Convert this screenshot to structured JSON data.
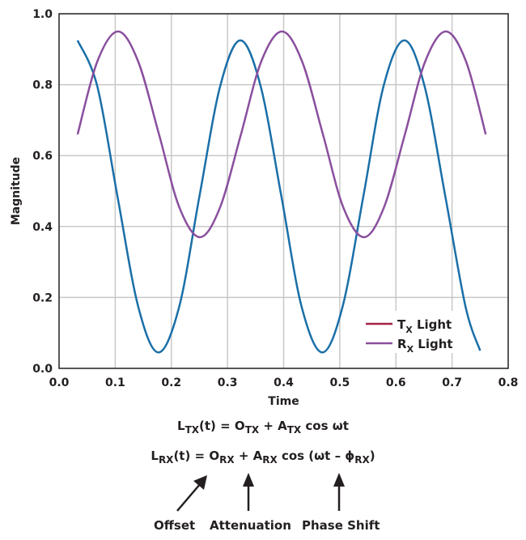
{
  "chart_data": {
    "type": "line",
    "xlabel": "Time",
    "ylabel": "Magnitude",
    "xlim": [
      0,
      0.8
    ],
    "ylim": [
      0,
      1.0
    ],
    "xticks": [
      "0.0",
      "0.1",
      "0.2",
      "0.3",
      "0.4",
      "0.5",
      "0.6",
      "0.7",
      "0.8"
    ],
    "yticks": [
      "0.0",
      "0.2",
      "0.4",
      "0.6",
      "0.8",
      "1.0"
    ],
    "grid": true,
    "legend_position": "bottom-right",
    "series": [
      {
        "name_main": "T",
        "name_sub": "X",
        "name_rest": " Light",
        "legend_color": "#a3224a",
        "color": "#1a6fa8",
        "x": [
          0.033,
          0.068,
          0.104,
          0.141,
          0.177,
          0.214,
          0.25,
          0.287,
          0.323,
          0.359,
          0.396,
          0.432,
          0.469,
          0.505,
          0.542,
          0.578,
          0.615,
          0.651,
          0.688,
          0.724,
          0.75
        ],
        "y": [
          0.925,
          0.796,
          0.485,
          0.174,
          0.045,
          0.174,
          0.485,
          0.796,
          0.925,
          0.796,
          0.485,
          0.174,
          0.045,
          0.174,
          0.485,
          0.796,
          0.925,
          0.796,
          0.485,
          0.174,
          0.05
        ]
      },
      {
        "name_main": "R",
        "name_sub": "X",
        "name_rest": " Light",
        "legend_color": "#8a4f9e",
        "color": "#8a4f9e",
        "x": [
          0.033,
          0.068,
          0.105,
          0.141,
          0.178,
          0.214,
          0.251,
          0.287,
          0.324,
          0.36,
          0.397,
          0.433,
          0.47,
          0.506,
          0.543,
          0.579,
          0.616,
          0.652,
          0.689,
          0.725,
          0.76
        ],
        "y": [
          0.66,
          0.865,
          0.95,
          0.865,
          0.66,
          0.455,
          0.37,
          0.455,
          0.66,
          0.865,
          0.95,
          0.865,
          0.66,
          0.455,
          0.37,
          0.455,
          0.66,
          0.865,
          0.95,
          0.865,
          0.66
        ]
      }
    ]
  },
  "equations": {
    "tx": {
      "l": "L",
      "l_sub": "TX",
      "t": "(t) = O",
      "o_sub": "TX",
      "plus": " + A",
      "a_sub": "TX",
      "rest": " cos ωt"
    },
    "rx": {
      "l": "L",
      "l_sub": "RX",
      "t": "(t) = O",
      "o_sub": "RX",
      "plus": " + A",
      "a_sub": "RX",
      "rest": " cos (ωt – ϕ",
      "phi_sub": "RX",
      "close": ")"
    }
  },
  "annotations": {
    "offset": "Offset",
    "attenuation": "Attenuation",
    "phase_shift": "Phase Shift"
  }
}
